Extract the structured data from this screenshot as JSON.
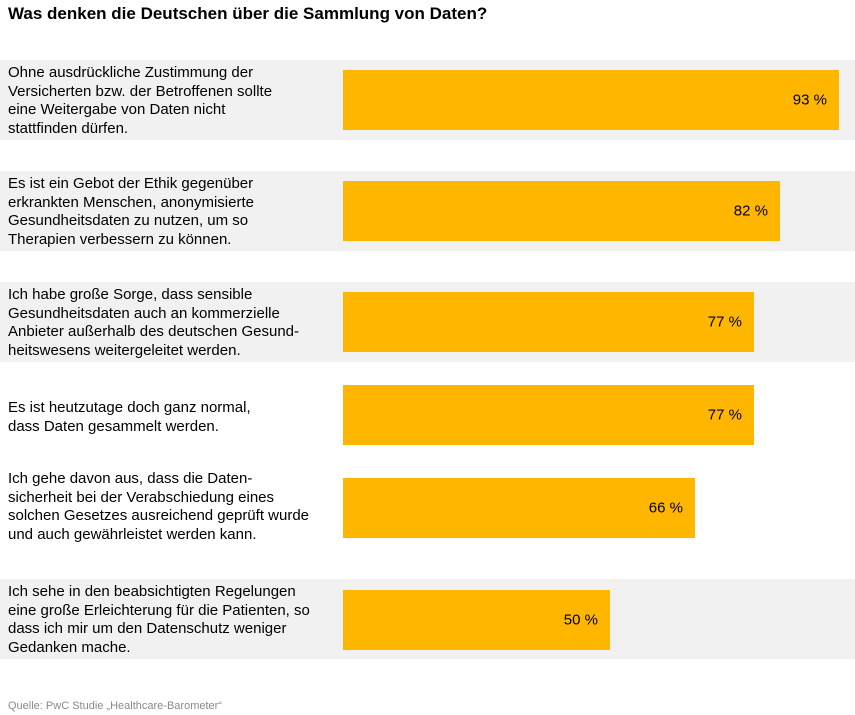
{
  "colors": {
    "bar": "#ffb600",
    "row_background": "#f1f1f1"
  },
  "chart_data": {
    "type": "bar",
    "orientation": "horizontal",
    "title": "Was denken die Deutschen über die Sammlung von Daten?",
    "unit": "%",
    "xlim": [
      0,
      100
    ],
    "grid": false,
    "categories": [
      "Ohne ausdrückliche Zustimmung der\nVersicherten bzw. der Betroffenen sollte\neine Weitergabe von Daten nicht\nstattfinden dürfen.",
      "Es ist ein Gebot der Ethik gegenüber\nerkrankten Menschen, anonymisierte\nGesundheitsdaten zu nutzen, um so\nTherapien verbessern zu können.",
      "Ich habe große Sorge, dass sensible\nGesundheitsdaten auch an kommerzielle\nAnbieter außerhalb des deutschen Gesund-\nheitswesens weitergeleitet werden.",
      "Es ist heutzutage doch ganz normal,\ndass Daten gesammelt werden.",
      "Ich gehe davon aus, dass die Daten-\nsicherheit bei der Verabschiedung eines\nsolchen Gesetzes ausreichend geprüft wurde\nund auch gewährleistet werden kann.",
      "Ich sehe in den beabsichtigten Regelungen\neine große Erleichterung für die Patienten, so\ndass ich mir um den Datenschutz weniger\nGedanken mache."
    ],
    "values": [
      93,
      82,
      77,
      77,
      66,
      50
    ],
    "value_labels": [
      "93 %",
      "82 %",
      "77 %",
      "77 %",
      "66 %",
      "50 %"
    ],
    "shaded_rows": [
      true,
      true,
      true,
      false,
      false,
      true
    ]
  },
  "footer": {
    "source": "Quelle: PwC Studie „Healthcare-Barometer“"
  }
}
